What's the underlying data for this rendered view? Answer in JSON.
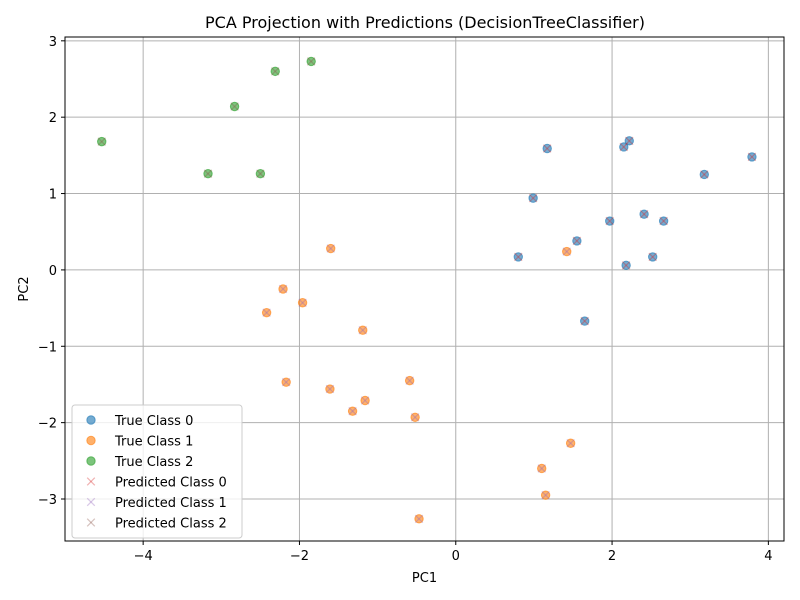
{
  "chart_data": {
    "type": "scatter",
    "title": "PCA Projection with Predictions (DecisionTreeClassifier)",
    "xlabel": "PC1",
    "ylabel": "PC2",
    "xlim": [
      -5.0,
      4.2
    ],
    "ylim": [
      -3.55,
      3.05
    ],
    "xticks": [
      -4,
      -2,
      0,
      2,
      4
    ],
    "yticks": [
      -3,
      -2,
      -1,
      0,
      1,
      2,
      3
    ],
    "grid": true,
    "legend_position": "lower-left",
    "colors": {
      "class0": "#1f77b4",
      "class1": "#ff7f0e",
      "class2": "#2ca02c",
      "pred0": "#d62728",
      "pred1": "#9467bd",
      "pred2": "#8c564b"
    },
    "series": [
      {
        "name": "True Class 0",
        "marker": "circle",
        "color_key": "class0",
        "points": [
          [
            1.17,
            1.59
          ],
          [
            2.22,
            1.69
          ],
          [
            2.15,
            1.61
          ],
          [
            3.79,
            1.48
          ],
          [
            3.18,
            1.25
          ],
          [
            0.99,
            0.94
          ],
          [
            1.97,
            0.64
          ],
          [
            2.41,
            0.73
          ],
          [
            2.66,
            0.64
          ],
          [
            1.55,
            0.38
          ],
          [
            0.8,
            0.17
          ],
          [
            2.18,
            0.06
          ],
          [
            2.52,
            0.17
          ],
          [
            1.65,
            -0.67
          ]
        ]
      },
      {
        "name": "True Class 1",
        "marker": "circle",
        "color_key": "class1",
        "points": [
          [
            -1.6,
            0.28
          ],
          [
            1.42,
            0.24
          ],
          [
            -2.21,
            -0.25
          ],
          [
            -1.96,
            -0.43
          ],
          [
            -2.42,
            -0.56
          ],
          [
            -1.19,
            -0.79
          ],
          [
            -2.17,
            -1.47
          ],
          [
            -1.61,
            -1.56
          ],
          [
            -0.59,
            -1.45
          ],
          [
            -1.16,
            -1.71
          ],
          [
            -1.32,
            -1.85
          ],
          [
            -0.52,
            -1.93
          ],
          [
            1.47,
            -2.27
          ],
          [
            1.1,
            -2.6
          ],
          [
            1.15,
            -2.95
          ],
          [
            -0.47,
            -3.26
          ]
        ]
      },
      {
        "name": "True Class 2",
        "marker": "circle",
        "color_key": "class2",
        "points": [
          [
            -1.85,
            2.73
          ],
          [
            -2.31,
            2.6
          ],
          [
            -2.83,
            2.14
          ],
          [
            -4.53,
            1.68
          ],
          [
            -3.17,
            1.26
          ],
          [
            -2.5,
            1.26
          ]
        ]
      },
      {
        "name": "Predicted Class 0",
        "marker": "x",
        "color_key": "pred0",
        "points": [
          [
            1.17,
            1.59
          ],
          [
            2.22,
            1.69
          ],
          [
            2.15,
            1.61
          ],
          [
            3.79,
            1.48
          ],
          [
            3.18,
            1.25
          ],
          [
            0.99,
            0.94
          ],
          [
            1.97,
            0.64
          ],
          [
            2.41,
            0.73
          ],
          [
            2.66,
            0.64
          ],
          [
            1.55,
            0.38
          ],
          [
            0.8,
            0.17
          ],
          [
            2.18,
            0.06
          ],
          [
            2.52,
            0.17
          ],
          [
            1.65,
            -0.67
          ]
        ]
      },
      {
        "name": "Predicted Class 1",
        "marker": "x",
        "color_key": "pred1",
        "points": [
          [
            -1.6,
            0.28
          ],
          [
            1.42,
            0.24
          ],
          [
            -2.21,
            -0.25
          ],
          [
            -1.96,
            -0.43
          ],
          [
            -2.42,
            -0.56
          ],
          [
            -1.19,
            -0.79
          ],
          [
            -2.17,
            -1.47
          ],
          [
            -1.61,
            -1.56
          ],
          [
            -0.59,
            -1.45
          ],
          [
            -1.16,
            -1.71
          ],
          [
            -1.32,
            -1.85
          ],
          [
            -0.52,
            -1.93
          ],
          [
            1.47,
            -2.27
          ],
          [
            1.1,
            -2.6
          ],
          [
            1.15,
            -2.95
          ],
          [
            -0.47,
            -3.26
          ]
        ]
      },
      {
        "name": "Predicted Class 2",
        "marker": "x",
        "color_key": "pred2",
        "points": [
          [
            -1.85,
            2.73
          ],
          [
            -2.31,
            2.6
          ],
          [
            -2.83,
            2.14
          ],
          [
            -4.53,
            1.68
          ],
          [
            -3.17,
            1.26
          ],
          [
            -2.5,
            1.26
          ]
        ]
      }
    ]
  }
}
